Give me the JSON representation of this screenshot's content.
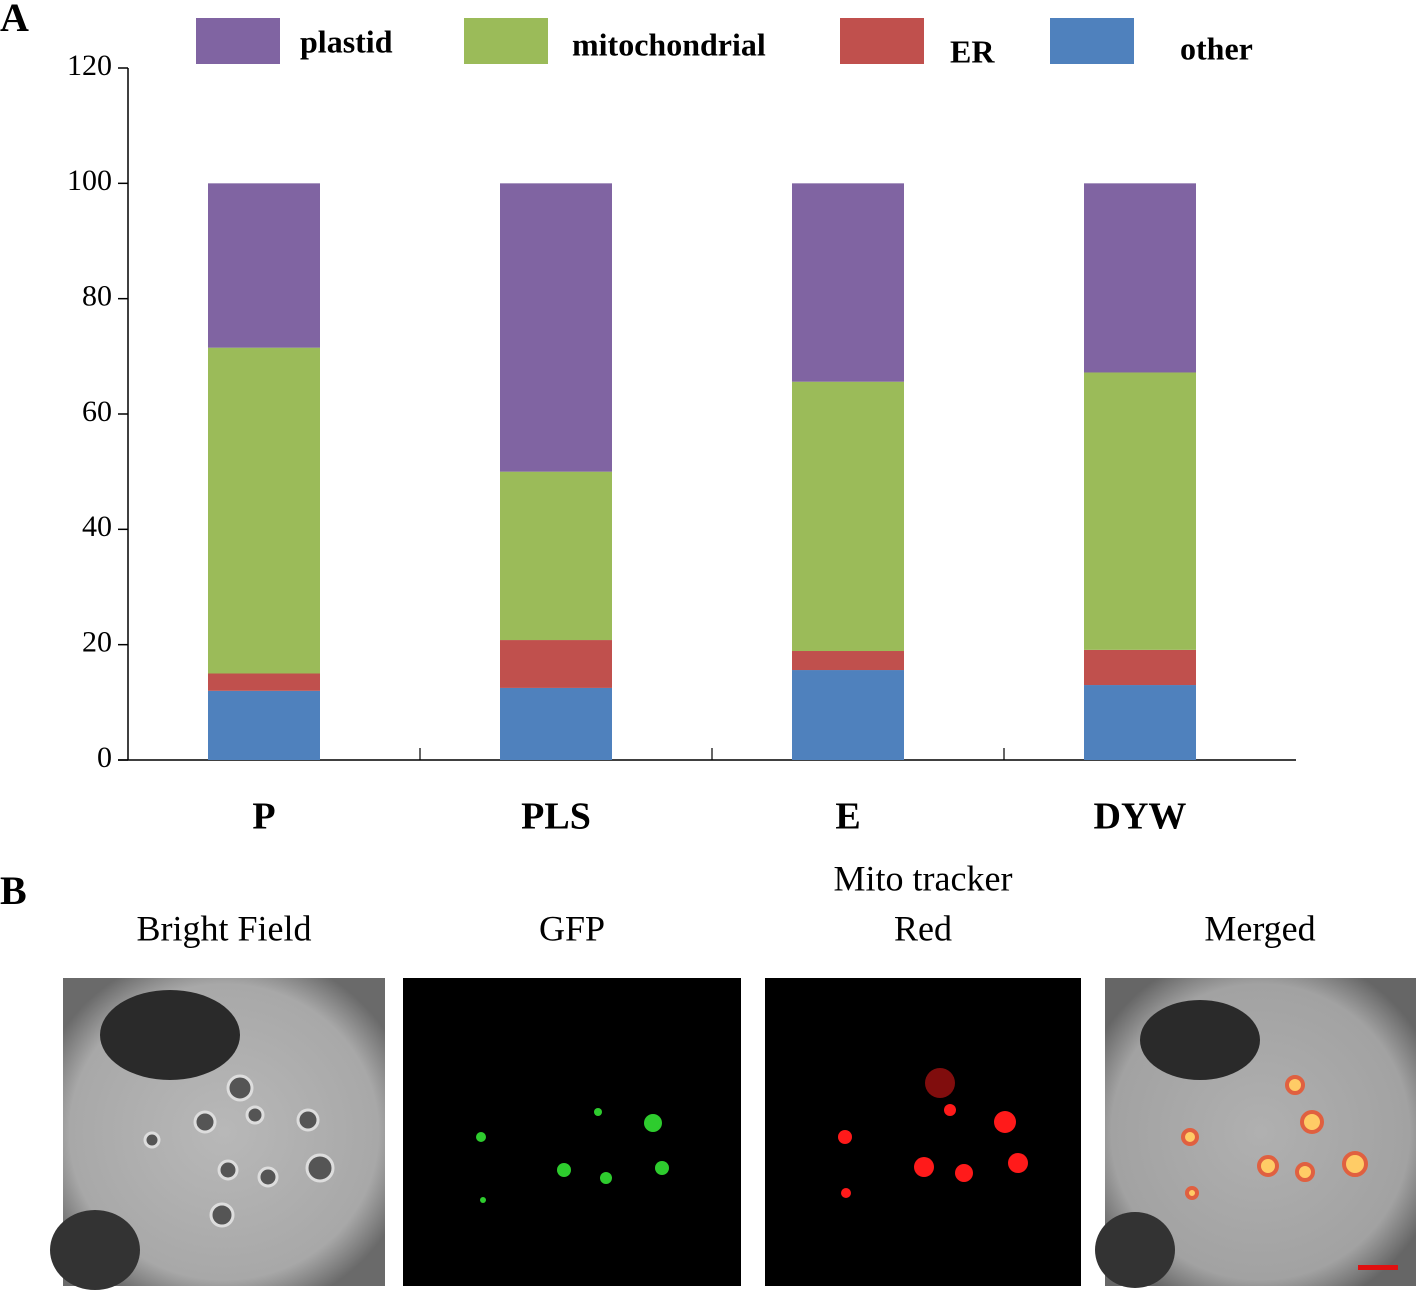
{
  "panel_labels": [
    "A",
    "B"
  ],
  "chart_data": {
    "type": "stacked-bar",
    "categories": [
      "P",
      "PLS",
      "E",
      "DYW"
    ],
    "series": [
      {
        "name": "plastid",
        "color": "#8064a2",
        "values": [
          28.5,
          50,
          34.4,
          32.8
        ]
      },
      {
        "name": "mitochondrial",
        "color": "#9bbb59",
        "values": [
          56.5,
          29.2,
          46.7,
          48.1
        ]
      },
      {
        "name": "ER",
        "color": "#c0504d",
        "values": [
          3,
          8.3,
          3.3,
          6.1
        ]
      },
      {
        "name": "other",
        "color": "#4f81bd",
        "values": [
          12,
          12.5,
          15.6,
          13
        ]
      }
    ],
    "ylim": [
      0,
      120
    ],
    "yticks": [
      0,
      20,
      40,
      60,
      80,
      100,
      120
    ],
    "legend": "top"
  },
  "images": [
    {
      "title": [
        "Bright Field"
      ]
    },
    {
      "title": [
        "GFP"
      ]
    },
    {
      "title": [
        "Mito tracker",
        "Red"
      ]
    },
    {
      "title": [
        "Merged"
      ]
    }
  ]
}
